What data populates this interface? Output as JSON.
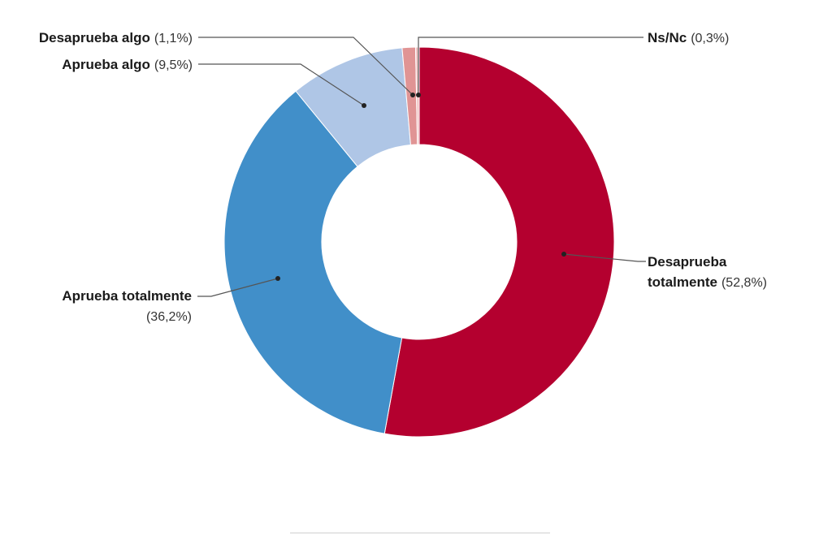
{
  "chart_data": {
    "type": "pie",
    "donut": true,
    "legend": "none",
    "slices": [
      {
        "name": "Desaprueba totalmente",
        "value": 52.8,
        "pct_label": "(52,8%)",
        "color": "#b4002f"
      },
      {
        "name": "Aprueba totalmente",
        "value": 36.2,
        "pct_label": "(36,2%)",
        "color": "#418fc9"
      },
      {
        "name": "Aprueba algo",
        "value": 9.5,
        "pct_label": "(9,5%)",
        "color": "#afc6e6"
      },
      {
        "name": "Desaprueba algo",
        "value": 1.1,
        "pct_label": "(1,1%)",
        "color": "#e09494"
      },
      {
        "name": "Ns/Nc",
        "value": 0.3,
        "pct_label": "(0,3%)",
        "color": "#f2c4c4"
      }
    ]
  }
}
